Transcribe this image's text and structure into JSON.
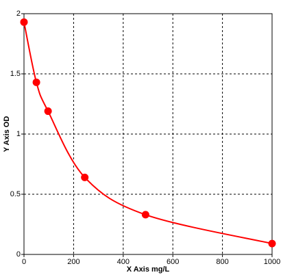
{
  "chart_data": {
    "type": "scatter",
    "xlabel": "X Axis mg/L",
    "ylabel": "Y Axis OD",
    "x": [
      0,
      50,
      97,
      245,
      490,
      1000
    ],
    "series": [
      {
        "color": "#ff0000",
        "line": true,
        "values": [
          1.93,
          1.43,
          1.19,
          0.64,
          0.33,
          0.09
        ]
      }
    ],
    "xlim": [
      0,
      1000
    ],
    "xticks": [
      0,
      200,
      400,
      600,
      800,
      1000
    ],
    "ylim": [
      0,
      2
    ],
    "yticks": [
      0,
      0.5,
      1,
      1.5,
      2
    ],
    "grid": true
  }
}
